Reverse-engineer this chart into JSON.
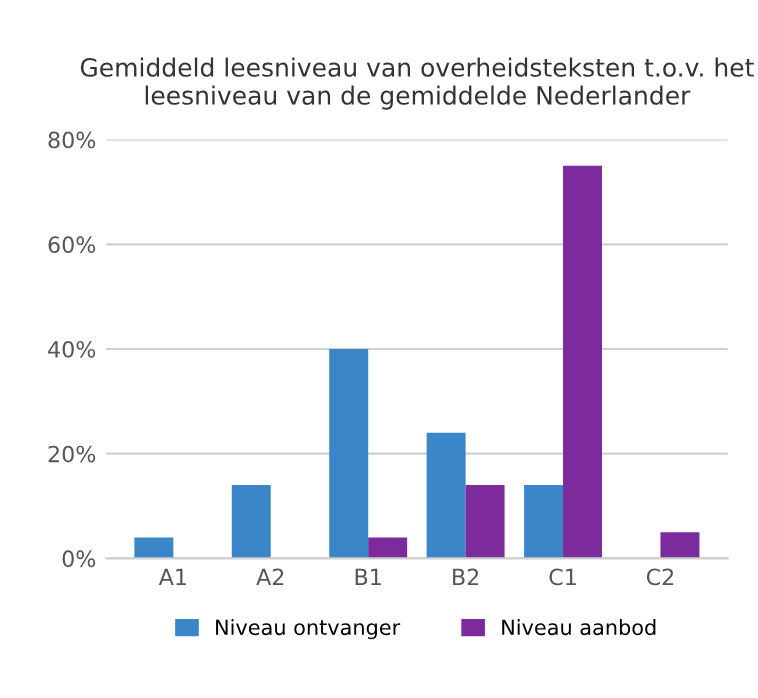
{
  "chart_data": {
    "type": "bar",
    "title": "Gemiddeld leesniveau van overheidsteksten t.o.v. het leesniveau van de gemiddelde Nederlander",
    "categories": [
      "A1",
      "A2",
      "B1",
      "B2",
      "C1",
      "C2"
    ],
    "series": [
      {
        "name": "Niveau ontvanger",
        "color": "#3b86c9",
        "values": [
          4,
          14,
          40,
          24,
          14,
          0
        ]
      },
      {
        "name": "Niveau aanbod",
        "color": "#7b2b9b",
        "values": [
          0,
          0,
          4,
          14,
          75,
          5
        ]
      }
    ],
    "ylim": [
      0,
      80
    ],
    "yticks": [
      {
        "value": 0,
        "label": "0%"
      },
      {
        "value": 20,
        "label": "20%"
      },
      {
        "value": 40,
        "label": "40%"
      },
      {
        "value": 60,
        "label": "60%"
      },
      {
        "value": 80,
        "label": "80%"
      }
    ],
    "grid": "y",
    "legend": "bottom"
  }
}
